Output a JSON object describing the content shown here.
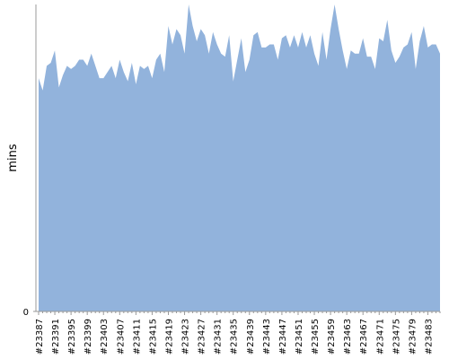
{
  "chart_data": {
    "type": "area",
    "y_label": "mins",
    "categories": [
      "#23387",
      null,
      null,
      null,
      "#23391",
      null,
      null,
      null,
      "#23395",
      null,
      null,
      null,
      "#23399",
      null,
      null,
      null,
      "#23403",
      null,
      null,
      null,
      "#23407",
      null,
      null,
      null,
      "#23411",
      null,
      null,
      null,
      "#23415",
      null,
      null,
      null,
      "#23419",
      null,
      null,
      null,
      "#23423",
      null,
      null,
      null,
      "#23427",
      null,
      null,
      null,
      "#23431",
      null,
      null,
      null,
      "#23435",
      null,
      null,
      null,
      "#23439",
      null,
      null,
      null,
      "#23443",
      null,
      null,
      null,
      "#23447",
      null,
      null,
      null,
      "#23451",
      null,
      null,
      null,
      "#23455",
      null,
      null,
      null,
      "#23459",
      null,
      null,
      null,
      "#23463",
      null,
      null,
      null,
      "#23467",
      null,
      null,
      null,
      "#23471",
      null,
      null,
      null,
      "#23475",
      null,
      null,
      null,
      "#23479",
      null,
      null,
      null,
      "#23483",
      null,
      null,
      null
    ],
    "values": [
      76,
      72,
      80,
      81,
      85,
      73,
      77,
      80,
      79,
      80,
      82,
      82,
      80,
      84,
      80,
      76,
      76,
      78,
      80,
      76,
      82,
      78,
      75,
      81,
      74,
      80,
      79,
      80,
      76,
      82,
      84,
      78,
      93,
      87,
      92,
      90,
      84,
      100,
      93,
      88,
      92,
      90,
      84,
      91,
      87,
      84,
      83,
      90,
      75,
      82,
      89,
      78,
      82,
      90,
      91,
      86,
      86,
      87,
      87,
      82,
      89,
      90,
      86,
      90,
      86,
      91,
      86,
      90,
      84,
      80,
      91,
      82,
      92,
      100,
      92,
      85,
      79,
      85,
      84,
      84,
      89,
      83,
      83,
      79,
      89,
      88,
      95,
      85,
      81,
      83,
      86,
      87,
      91,
      79,
      88,
      93,
      86,
      87,
      87,
      84
    ],
    "color": "#92b3dc",
    "ylim": [
      0,
      100
    ],
    "yticks": [
      0
    ]
  }
}
